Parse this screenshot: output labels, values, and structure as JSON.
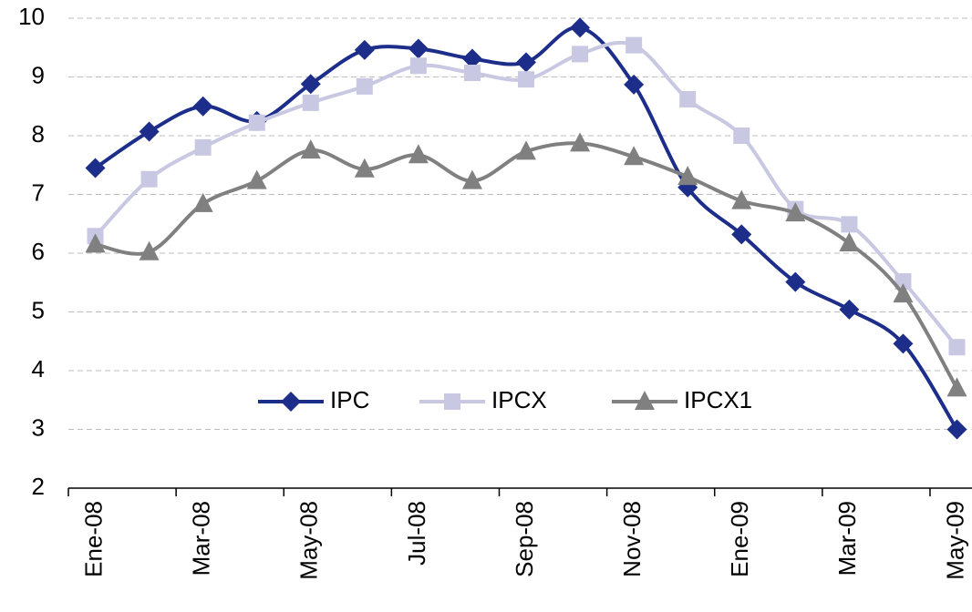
{
  "chart_data": {
    "type": "line",
    "categories": [
      "Ene-08",
      null,
      "Mar-08",
      null,
      "May-08",
      null,
      "Jul-08",
      null,
      "Sep-08",
      null,
      "Nov-08",
      null,
      "Ene-09",
      null,
      "Mar-09",
      null,
      "May-09"
    ],
    "series": [
      {
        "name": "IPC",
        "color": "#1c2d8a",
        "marker": "diamond",
        "values": [
          7.45,
          8.07,
          8.5,
          8.25,
          8.88,
          9.46,
          9.48,
          9.31,
          9.25,
          9.84,
          8.87,
          7.12,
          6.32,
          5.51,
          5.04,
          4.46,
          3.0
        ]
      },
      {
        "name": "IPCX",
        "color": "#c8c8e2",
        "marker": "square",
        "values": [
          6.29,
          7.26,
          7.8,
          8.22,
          8.56,
          8.84,
          9.19,
          9.07,
          8.96,
          9.39,
          9.54,
          8.62,
          8.0,
          6.75,
          6.49,
          5.52,
          4.4
        ]
      },
      {
        "name": "IPCX1",
        "color": "#808080",
        "marker": "triangle",
        "values": [
          6.15,
          6.02,
          6.84,
          7.23,
          7.75,
          7.43,
          7.67,
          7.23,
          7.73,
          7.87,
          7.64,
          7.3,
          6.89,
          6.68,
          6.17,
          5.3,
          3.7
        ]
      }
    ],
    "ylim": [
      2,
      10
    ],
    "yticks": [
      2,
      3,
      4,
      5,
      6,
      7,
      8,
      9,
      10
    ],
    "grid": true
  }
}
